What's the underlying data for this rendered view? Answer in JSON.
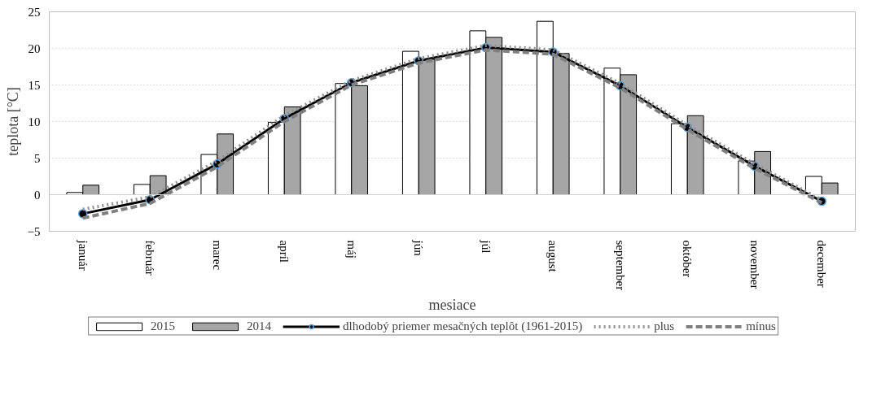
{
  "chart_data": {
    "type": "bar",
    "xlabel": "mesiace",
    "ylabel": "teplota [°C]",
    "categories": [
      "január",
      "február",
      "marec",
      "apríl",
      "máj",
      "jún",
      "júl",
      "august",
      "september",
      "október",
      "november",
      "december"
    ],
    "series": [
      {
        "name": "2015",
        "type": "bar",
        "color": "#ffffff",
        "values": [
          0.3,
          1.4,
          5.5,
          9.9,
          15.2,
          19.6,
          22.4,
          23.7,
          17.3,
          9.7,
          4.6,
          2.5
        ]
      },
      {
        "name": "2014",
        "type": "bar",
        "color": "#a6a6a6",
        "values": [
          1.3,
          2.6,
          8.3,
          12.0,
          14.9,
          18.5,
          21.5,
          19.3,
          16.4,
          10.8,
          5.9,
          1.6
        ]
      },
      {
        "name": "dlhodobý priemer mesačných teplôt (1961-2015)",
        "type": "line",
        "color": "#000000",
        "marker": "circle",
        "line_style": "solid",
        "values": [
          -2.6,
          -0.7,
          4.2,
          10.4,
          15.3,
          18.3,
          20.1,
          19.5,
          14.9,
          9.2,
          3.9,
          -0.9
        ]
      },
      {
        "name": "plus",
        "type": "line",
        "color": "#909090",
        "marker": "none",
        "line_style": "dotted",
        "values": [
          -2.0,
          -0.3,
          4.6,
          10.8,
          15.6,
          18.6,
          20.4,
          19.8,
          15.2,
          9.5,
          4.2,
          -0.7
        ]
      },
      {
        "name": "mínus",
        "type": "line",
        "color": "#808080",
        "marker": "none",
        "line_style": "dashed",
        "values": [
          -3.2,
          -1.2,
          3.8,
          10.0,
          15.0,
          18.0,
          19.8,
          19.2,
          14.6,
          8.9,
          3.6,
          -1.1
        ]
      }
    ],
    "ylim": [
      -5,
      25
    ],
    "yticks": [
      -5,
      0,
      5,
      10,
      15,
      20,
      25
    ],
    "grid": "y",
    "legend": "bottom"
  }
}
